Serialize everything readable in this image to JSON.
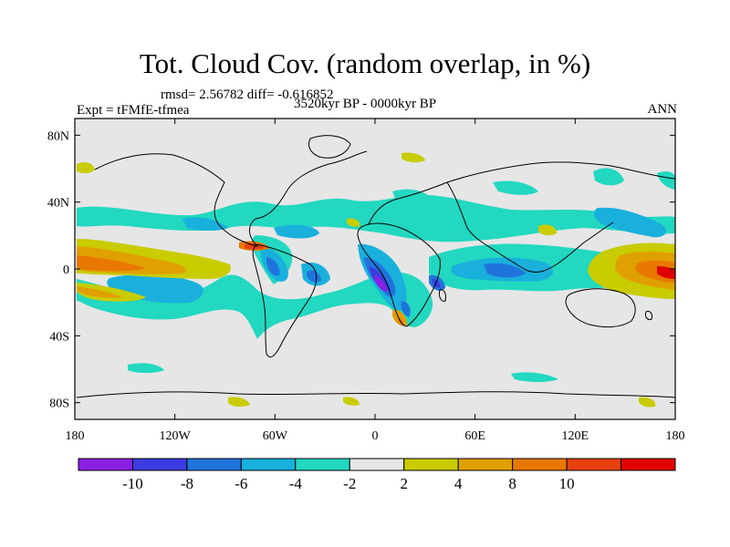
{
  "header": {
    "title": "Tot. Cloud Cov. (random overlap, in %)",
    "stats": "rmsd= 2.56782 diff= -0.616852",
    "period": "3520kyr BP - 0000kyr BP",
    "experiment": "Expt = tFMfE-tfmea",
    "season": "ANN"
  },
  "map": {
    "lon_range": [
      -180,
      180
    ],
    "lat_range": [
      -90,
      90
    ],
    "x_ticks": [
      {
        "value": -180,
        "label": "180"
      },
      {
        "value": -120,
        "label": "120W"
      },
      {
        "value": -60,
        "label": "60W"
      },
      {
        "value": 0,
        "label": "0"
      },
      {
        "value": 60,
        "label": "60E"
      },
      {
        "value": 120,
        "label": "120E"
      },
      {
        "value": 180,
        "label": "180"
      }
    ],
    "y_ticks": [
      {
        "value": 80,
        "label": "80N"
      },
      {
        "value": 40,
        "label": "40N"
      },
      {
        "value": 0,
        "label": "0"
      },
      {
        "value": -40,
        "label": "40S"
      },
      {
        "value": -80,
        "label": "80S"
      }
    ],
    "background_color": "#e6e6e6"
  },
  "colorbar": {
    "colors": [
      "#8a1fe6",
      "#3c3ce0",
      "#1f74dc",
      "#19b0dc",
      "#22d8c0",
      "#e6e6e6",
      "#c8cc00",
      "#e0a000",
      "#e87800",
      "#e84010",
      "#e00000"
    ],
    "labels": [
      "-10",
      "-8",
      "-6",
      "-4",
      "-2",
      "2",
      "4",
      "8",
      "10"
    ]
  }
}
